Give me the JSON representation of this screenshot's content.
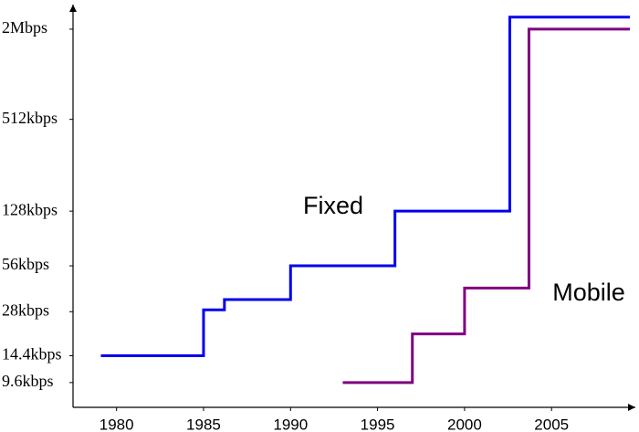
{
  "chart_data": {
    "type": "step",
    "x_is_year": true,
    "xlim": [
      1977.5,
      2009.5
    ],
    "xticks": [
      1980,
      1985,
      1990,
      1995,
      2000,
      2005
    ],
    "ylim": [
      6.6,
      2900
    ],
    "log_y": true,
    "yticks": [
      {
        "value": 2000,
        "label": "2Mbps"
      },
      {
        "value": 512,
        "label": "512kbps"
      },
      {
        "value": 128,
        "label": "128kbps"
      },
      {
        "value": 56,
        "label": "56kbps"
      },
      {
        "value": 28,
        "label": "28kbps"
      },
      {
        "value": 14.4,
        "label": "14.4kbps"
      },
      {
        "value": 9.6,
        "label": "9.6kbps"
      }
    ],
    "series": [
      {
        "name": "Fixed",
        "color": "#0000ee",
        "x": [
          1979.1,
          1985,
          1986.2,
          1990,
          1996,
          2002.6,
          2009.5
        ],
        "values": [
          14.4,
          28.8,
          33.6,
          56,
          128,
          2400,
          2400
        ]
      },
      {
        "name": "Mobile",
        "color": "#800080",
        "x": [
          1993,
          1997,
          2000,
          2003.7,
          2009.5
        ],
        "values": [
          9.6,
          20,
          40,
          2000,
          2000
        ]
      }
    ]
  }
}
